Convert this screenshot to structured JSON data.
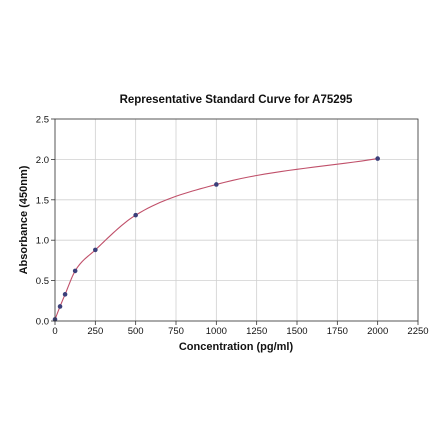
{
  "chart_data": {
    "type": "scatter",
    "title": "Representative Standard Curve for A75295",
    "xlabel": "Concentration (pg/ml)",
    "ylabel": "Absorbance (450nm)",
    "xlim": [
      0,
      2250
    ],
    "ylim": [
      0,
      2.5
    ],
    "x_ticks": [
      0,
      250,
      500,
      750,
      1000,
      1250,
      1500,
      1750,
      2000,
      2250
    ],
    "y_ticks": [
      0.0,
      0.5,
      1.0,
      1.5,
      2.0,
      2.5
    ],
    "x_tick_labels": [
      "0",
      "250",
      "500",
      "750",
      "1000",
      "1250",
      "1500",
      "1750",
      "2000",
      "2250"
    ],
    "y_tick_labels": [
      "0.0",
      "0.5",
      "1.0",
      "1.5",
      "2.0",
      "2.5"
    ],
    "grid": true,
    "series": [
      {
        "points": [
          {
            "x": 0,
            "y": 0.02
          },
          {
            "x": 31.25,
            "y": 0.18
          },
          {
            "x": 62.5,
            "y": 0.33
          },
          {
            "x": 125,
            "y": 0.62
          },
          {
            "x": 250,
            "y": 0.88
          },
          {
            "x": 500,
            "y": 1.31
          },
          {
            "x": 1000,
            "y": 1.69
          },
          {
            "x": 2000,
            "y": 2.01
          }
        ],
        "marker_color": "#3b3f7a",
        "fit_color": "#c0506a"
      }
    ]
  }
}
